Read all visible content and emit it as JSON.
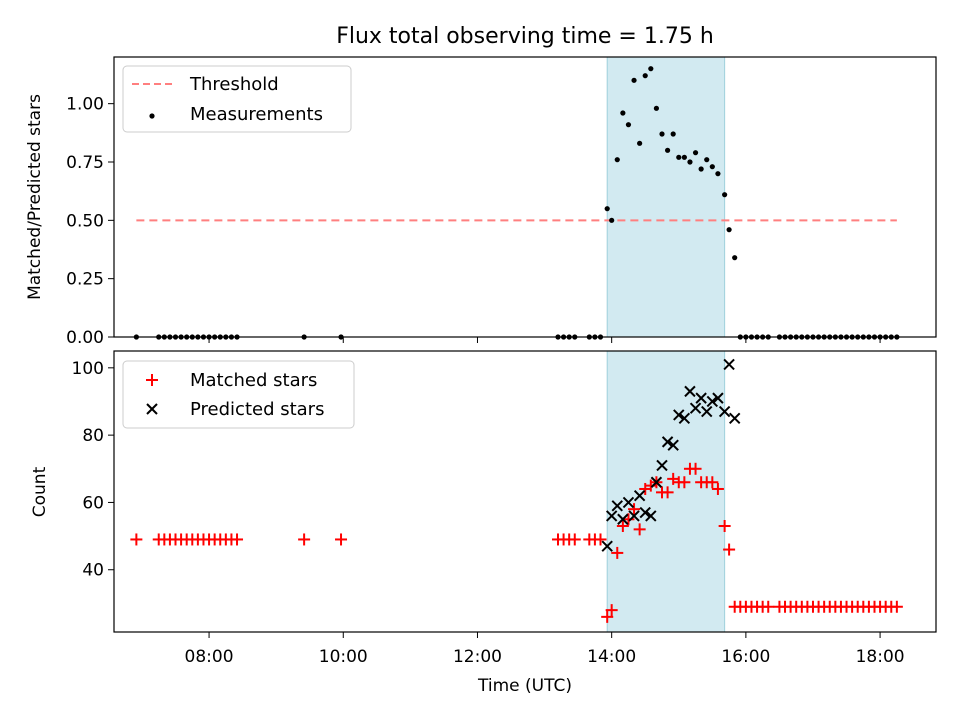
{
  "chart_data": [
    {
      "type": "scatter",
      "title": "Flux total observing time = 1.75 h",
      "xlabel": "",
      "ylabel": "Matched/Predicted stars",
      "xlim": [
        "06:35",
        "18:50"
      ],
      "ylim": [
        0,
        1.2
      ],
      "yticks": [
        0.0,
        0.25,
        0.5,
        0.75,
        1.0
      ],
      "ytick_labels": [
        "0.00",
        "0.25",
        "0.50",
        "0.75",
        "1.00"
      ],
      "legend": {
        "location": "upper-left",
        "entries": [
          "Threshold",
          "Measurements"
        ]
      },
      "shaded_interval": {
        "start": "13:56",
        "end": "15:41",
        "color": "#add8e6"
      },
      "grid": false,
      "series": [
        {
          "name": "Threshold",
          "kind": "dashed-line",
          "color": "#ff7f7f",
          "x": [
            "06:55",
            "18:15"
          ],
          "y": [
            0.5,
            0.5
          ]
        },
        {
          "name": "Measurements",
          "kind": "dots",
          "color": "#000000",
          "x": [
            "06:55",
            "07:15",
            "07:20",
            "07:25",
            "07:30",
            "07:35",
            "07:40",
            "07:45",
            "07:50",
            "07:55",
            "08:00",
            "08:05",
            "08:10",
            "08:15",
            "08:20",
            "08:25",
            "09:25",
            "09:58",
            "13:12",
            "13:17",
            "13:22",
            "13:27",
            "13:40",
            "13:45",
            "13:50",
            "13:56",
            "14:00",
            "14:05",
            "14:10",
            "14:15",
            "14:20",
            "14:25",
            "14:30",
            "14:35",
            "14:40",
            "14:45",
            "14:50",
            "14:55",
            "15:00",
            "15:05",
            "15:10",
            "15:15",
            "15:20",
            "15:25",
            "15:30",
            "15:35",
            "15:41",
            "15:45",
            "15:50",
            "15:55",
            "16:00",
            "16:05",
            "16:10",
            "16:15",
            "16:20",
            "16:30",
            "16:35",
            "16:40",
            "16:45",
            "16:50",
            "16:55",
            "17:00",
            "17:05",
            "17:10",
            "17:15",
            "17:20",
            "17:25",
            "17:30",
            "17:35",
            "17:40",
            "17:45",
            "17:50",
            "17:55",
            "18:00",
            "18:05",
            "18:10",
            "18:15"
          ],
          "y": [
            0,
            0,
            0,
            0,
            0,
            0,
            0,
            0,
            0,
            0,
            0,
            0,
            0,
            0,
            0,
            0,
            0,
            0,
            0,
            0,
            0,
            0,
            0,
            0,
            0,
            0.55,
            0.5,
            0.76,
            0.96,
            0.91,
            1.1,
            0.83,
            1.12,
            1.15,
            0.98,
            0.87,
            0.8,
            0.87,
            0.77,
            0.77,
            0.75,
            0.79,
            0.72,
            0.76,
            0.73,
            0.7,
            0.61,
            0.46,
            0.34,
            0,
            0,
            0,
            0,
            0,
            0,
            0,
            0,
            0,
            0,
            0,
            0,
            0,
            0,
            0,
            0,
            0,
            0,
            0,
            0,
            0,
            0,
            0,
            0,
            0,
            0,
            0,
            0
          ]
        }
      ]
    },
    {
      "type": "scatter",
      "title": "",
      "xlabel": "Time (UTC)",
      "ylabel": "Count",
      "xlim": [
        "06:35",
        "18:50"
      ],
      "ylim": [
        21.5,
        105
      ],
      "xticks": [
        "08:00",
        "10:00",
        "12:00",
        "14:00",
        "16:00",
        "18:00"
      ],
      "yticks": [
        40,
        60,
        80,
        100
      ],
      "ytick_labels": [
        "40",
        "60",
        "80",
        "100"
      ],
      "legend": {
        "location": "upper-left",
        "entries": [
          "Matched stars",
          "Predicted stars"
        ]
      },
      "shaded_interval": {
        "start": "13:56",
        "end": "15:41",
        "color": "#add8e6"
      },
      "grid": false,
      "series": [
        {
          "name": "Matched stars",
          "marker": "+",
          "color": "#ff0000",
          "x": [
            "06:55",
            "07:15",
            "07:20",
            "07:25",
            "07:30",
            "07:35",
            "07:40",
            "07:45",
            "07:50",
            "07:55",
            "08:00",
            "08:05",
            "08:10",
            "08:15",
            "08:20",
            "08:25",
            "09:25",
            "09:58",
            "13:12",
            "13:17",
            "13:22",
            "13:27",
            "13:40",
            "13:45",
            "13:50",
            "13:56",
            "14:00",
            "14:05",
            "14:10",
            "14:15",
            "14:20",
            "14:25",
            "14:30",
            "14:35",
            "14:40",
            "14:45",
            "14:50",
            "14:55",
            "15:00",
            "15:05",
            "15:10",
            "15:15",
            "15:20",
            "15:25",
            "15:30",
            "15:35",
            "15:41",
            "15:45",
            "15:50",
            "15:55",
            "16:00",
            "16:05",
            "16:10",
            "16:15",
            "16:20",
            "16:30",
            "16:35",
            "16:40",
            "16:45",
            "16:50",
            "16:55",
            "17:00",
            "17:05",
            "17:10",
            "17:15",
            "17:20",
            "17:25",
            "17:30",
            "17:35",
            "17:40",
            "17:45",
            "17:50",
            "17:55",
            "18:00",
            "18:05",
            "18:10",
            "18:15"
          ],
          "y": [
            49,
            49,
            49,
            49,
            49,
            49,
            49,
            49,
            49,
            49,
            49,
            49,
            49,
            49,
            49,
            49,
            49,
            49,
            49,
            49,
            49,
            49,
            49,
            49,
            49,
            26,
            28,
            45,
            53,
            55,
            58,
            52,
            64,
            65,
            66,
            63,
            63,
            67,
            66,
            66,
            70,
            70,
            66,
            66,
            66,
            64,
            53,
            46,
            29,
            29,
            29,
            29,
            29,
            29,
            29,
            29,
            29,
            29,
            29,
            29,
            29,
            29,
            29,
            29,
            29,
            29,
            29,
            29,
            29,
            29,
            29,
            29,
            29,
            29,
            29,
            29,
            29
          ]
        },
        {
          "name": "Predicted stars",
          "marker": "x",
          "color": "#000000",
          "x": [
            "13:56",
            "14:00",
            "14:05",
            "14:10",
            "14:15",
            "14:20",
            "14:25",
            "14:30",
            "14:35",
            "14:40",
            "14:45",
            "14:50",
            "14:55",
            "15:00",
            "15:05",
            "15:10",
            "15:15",
            "15:20",
            "15:25",
            "15:30",
            "15:35",
            "15:41",
            "15:45",
            "15:50"
          ],
          "y": [
            47,
            56,
            59,
            55,
            60,
            56,
            62,
            57,
            56,
            66,
            71,
            78,
            77,
            86,
            85,
            93,
            88,
            91,
            87,
            90,
            91,
            87,
            101,
            85
          ]
        }
      ]
    }
  ]
}
